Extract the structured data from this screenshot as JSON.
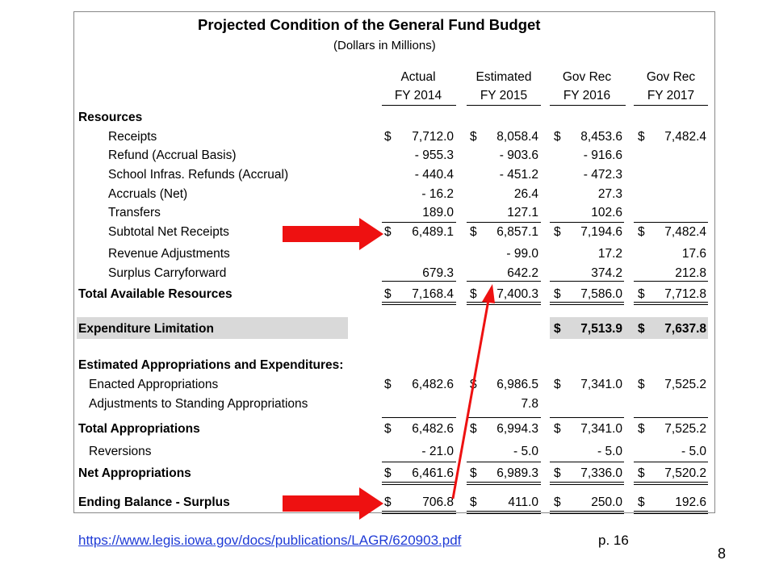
{
  "table": {
    "title": "Projected Condition of the General Fund Budget",
    "subtitle": "(Dollars in Millions)",
    "columns": [
      {
        "line1": "Actual",
        "line2": "FY 2014"
      },
      {
        "line1": "Estimated",
        "line2": "FY 2015"
      },
      {
        "line1": "Gov Rec",
        "line2": "FY 2016"
      },
      {
        "line1": "Gov Rec",
        "line2": "FY 2017"
      }
    ],
    "sections": {
      "resources": "Resources",
      "total_available": "Total Available Resources",
      "expenditure_limitation": "Expenditure Limitation",
      "estimated_appropriations": "Estimated Appropriations and Expenditures:",
      "total_appropriations": "Total Appropriations",
      "net_appropriations": "Net Appropriations",
      "ending_balance": "Ending Balance - Surplus"
    },
    "rows": [
      {
        "label": "Receipts",
        "values": [
          "7,712.0",
          "8,058.4",
          "8,453.6",
          "7,482.4"
        ],
        "dollar": true
      },
      {
        "label": "Refund (Accrual Basis)",
        "values": [
          "- 955.3",
          "- 903.6",
          "- 916.6",
          ""
        ]
      },
      {
        "label": "School Infras. Refunds (Accrual)",
        "values": [
          "- 440.4",
          "- 451.2",
          "- 472.3",
          ""
        ]
      },
      {
        "label": "Accruals (Net)",
        "values": [
          "- 16.2",
          "26.4",
          "27.3",
          ""
        ]
      },
      {
        "label": "Transfers",
        "values": [
          "189.0",
          "127.1",
          "102.6",
          ""
        ]
      },
      {
        "label": "Subtotal Net Receipts",
        "values": [
          "6,489.1",
          "6,857.1",
          "7,194.6",
          "7,482.4"
        ],
        "dollar": true
      },
      {
        "label": "Revenue Adjustments",
        "values": [
          "",
          "- 99.0",
          "17.2",
          "17.6"
        ]
      },
      {
        "label": "Surplus Carryforward",
        "values": [
          "679.3",
          "642.2",
          "374.2",
          "212.8"
        ]
      },
      {
        "label": "Total Available Resources",
        "values": [
          "7,168.4",
          "7,400.3",
          "7,586.0",
          "7,712.8"
        ],
        "dollar": true
      },
      {
        "label": "Expenditure Limitation",
        "values": [
          "",
          "",
          "7,513.9",
          "7,637.8"
        ],
        "dollar": true
      },
      {
        "label": "Enacted Appropriations",
        "values": [
          "6,482.6",
          "6,986.5",
          "7,341.0",
          "7,525.2"
        ],
        "dollar": true
      },
      {
        "label": "Adjustments to Standing Appropriations",
        "values": [
          "",
          "7.8",
          "",
          ""
        ]
      },
      {
        "label": "Total Appropriations",
        "values": [
          "6,482.6",
          "6,994.3",
          "7,341.0",
          "7,525.2"
        ],
        "dollar": true
      },
      {
        "label": "Reversions",
        "values": [
          "- 21.0",
          "- 5.0",
          "- 5.0",
          "- 5.0"
        ]
      },
      {
        "label": "Net Appropriations",
        "values": [
          "6,461.6",
          "6,989.3",
          "7,336.0",
          "7,520.2"
        ],
        "dollar": true
      },
      {
        "label": "Ending Balance - Surplus",
        "values": [
          "706.8",
          "411.0",
          "250.0",
          "192.6"
        ],
        "dollar": true
      }
    ],
    "dollar_sign": "$"
  },
  "footer": {
    "link_text": "https://www.legis.iowa.gov/docs/publications/LAGR/620903.pdf",
    "page_ref": "p. 16",
    "slide_number": "8"
  },
  "annotation_color": "#ee1111"
}
